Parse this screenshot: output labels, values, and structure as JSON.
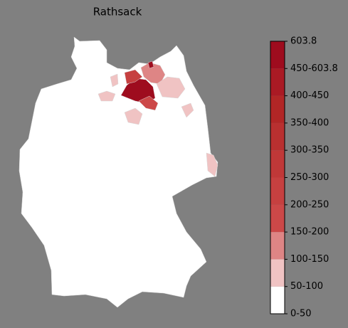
{
  "title": "Rathsack",
  "colorbar": {
    "labels": [
      "0-50",
      "50-100",
      "100-150",
      "150-200",
      "200-250",
      "250-300",
      "300-350",
      "350-400",
      "400-450",
      "450-603.8",
      "603.8"
    ],
    "colors": [
      "#ffffff",
      "#f0c3c3",
      "#de8585",
      "#cc4848",
      "#c64040",
      "#c03838",
      "#b93030",
      "#b22626",
      "#aa1a24",
      "#9e0c1e"
    ]
  }
}
